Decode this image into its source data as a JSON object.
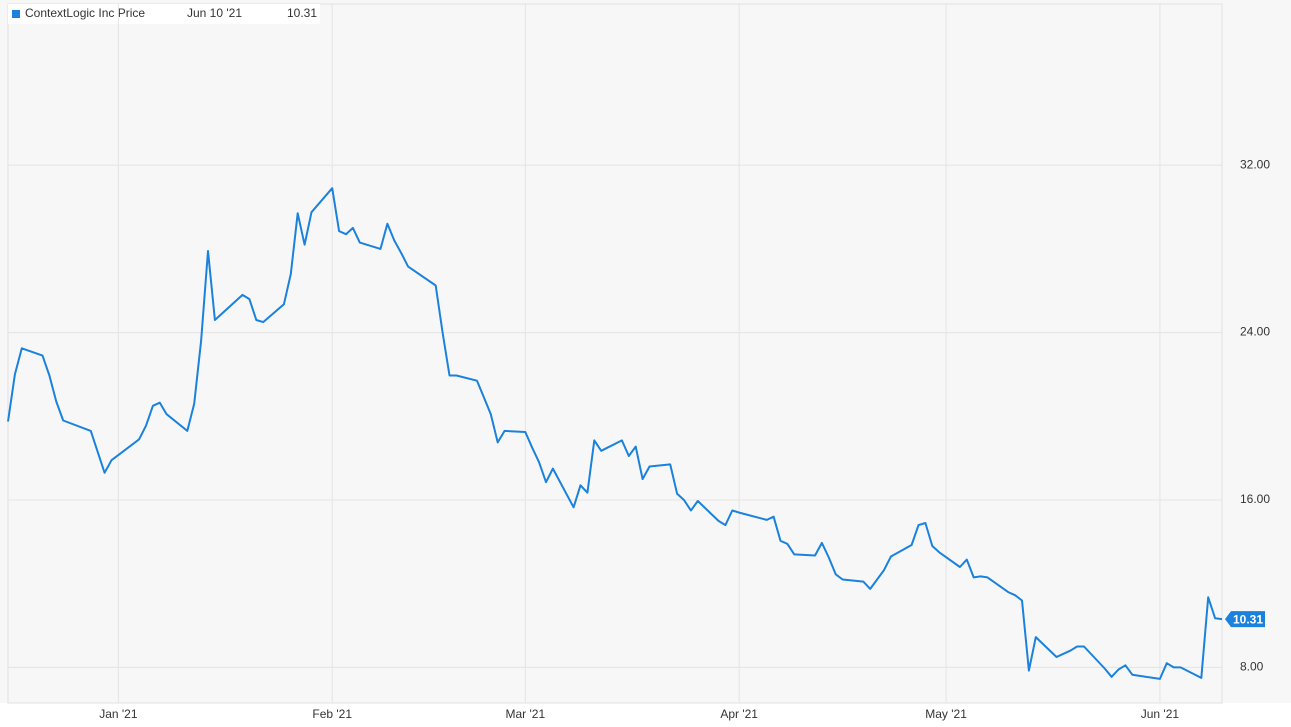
{
  "chart_data": {
    "type": "line",
    "legend_date": "Jun 10 '21",
    "series": [
      {
        "name": "ContextLogic Inc Price",
        "color": "#1a82dc",
        "x": [
          "2020-12-16",
          "2020-12-17",
          "2020-12-18",
          "2020-12-21",
          "2020-12-22",
          "2020-12-23",
          "2020-12-24",
          "2020-12-28",
          "2020-12-29",
          "2020-12-30",
          "2020-12-31",
          "2021-01-04",
          "2021-01-05",
          "2021-01-06",
          "2021-01-07",
          "2021-01-08",
          "2021-01-11",
          "2021-01-12",
          "2021-01-13",
          "2021-01-14",
          "2021-01-15",
          "2021-01-19",
          "2021-01-20",
          "2021-01-21",
          "2021-01-22",
          "2021-01-25",
          "2021-01-26",
          "2021-01-27",
          "2021-01-28",
          "2021-01-29",
          "2021-02-01",
          "2021-02-02",
          "2021-02-03",
          "2021-02-04",
          "2021-02-05",
          "2021-02-08",
          "2021-02-09",
          "2021-02-10",
          "2021-02-11",
          "2021-02-12",
          "2021-02-16",
          "2021-02-17",
          "2021-02-18",
          "2021-02-19",
          "2021-02-22",
          "2021-02-23",
          "2021-02-24",
          "2021-02-25",
          "2021-02-26",
          "2021-03-01",
          "2021-03-02",
          "2021-03-03",
          "2021-03-04",
          "2021-03-05",
          "2021-03-08",
          "2021-03-09",
          "2021-03-10",
          "2021-03-11",
          "2021-03-12",
          "2021-03-15",
          "2021-03-16",
          "2021-03-17",
          "2021-03-18",
          "2021-03-19",
          "2021-03-22",
          "2021-03-23",
          "2021-03-24",
          "2021-03-25",
          "2021-03-26",
          "2021-03-29",
          "2021-03-30",
          "2021-03-31",
          "2021-04-01",
          "2021-04-05",
          "2021-04-06",
          "2021-04-07",
          "2021-04-08",
          "2021-04-09",
          "2021-04-12",
          "2021-04-13",
          "2021-04-14",
          "2021-04-15",
          "2021-04-16",
          "2021-04-19",
          "2021-04-20",
          "2021-04-21",
          "2021-04-22",
          "2021-04-23",
          "2021-04-26",
          "2021-04-27",
          "2021-04-28",
          "2021-04-29",
          "2021-04-30",
          "2021-05-03",
          "2021-05-04",
          "2021-05-05",
          "2021-05-06",
          "2021-05-07",
          "2021-05-10",
          "2021-05-11",
          "2021-05-12",
          "2021-05-13",
          "2021-05-14",
          "2021-05-17",
          "2021-05-18",
          "2021-05-19",
          "2021-05-20",
          "2021-05-21",
          "2021-05-24",
          "2021-05-25",
          "2021-05-26",
          "2021-05-27",
          "2021-05-28",
          "2021-06-01",
          "2021-06-02",
          "2021-06-03",
          "2021-06-04",
          "2021-06-07",
          "2021-06-08",
          "2021-06-09",
          "2021-06-10"
        ],
        "values": [
          19.75,
          22.0,
          23.25,
          22.9,
          21.95,
          20.7,
          19.8,
          19.3,
          18.3,
          17.3,
          17.9,
          18.9,
          19.55,
          20.5,
          20.65,
          20.1,
          19.3,
          20.6,
          23.6,
          27.9,
          24.6,
          25.8,
          25.6,
          24.6,
          24.5,
          25.35,
          26.8,
          29.7,
          28.2,
          29.75,
          30.9,
          28.85,
          28.7,
          29.0,
          28.3,
          28.0,
          29.2,
          28.4,
          27.8,
          27.15,
          26.25,
          24.0,
          21.95,
          21.95,
          21.7,
          20.9,
          20.1,
          18.75,
          19.3,
          19.25,
          18.5,
          17.8,
          16.85,
          17.5,
          15.65,
          16.7,
          16.35,
          18.85,
          18.35,
          18.85,
          18.1,
          18.55,
          17.0,
          17.6,
          17.7,
          16.3,
          16.0,
          15.5,
          15.95,
          15.0,
          14.8,
          15.5,
          15.4,
          15.05,
          15.2,
          14.05,
          13.9,
          13.4,
          13.35,
          13.95,
          13.25,
          12.45,
          12.2,
          12.1,
          11.75,
          12.2,
          12.65,
          13.3,
          13.85,
          14.8,
          14.9,
          13.8,
          13.5,
          12.8,
          13.15,
          12.3,
          12.35,
          12.3,
          11.6,
          11.45,
          11.2,
          7.85,
          9.45,
          8.5,
          8.65,
          8.8,
          9.0,
          9.0,
          7.95,
          7.55,
          7.9,
          8.1,
          7.65,
          7.45,
          8.2,
          8.0,
          8.0,
          7.5,
          11.35,
          10.35,
          10.31
        ]
      }
    ],
    "xlim": [
      "2020-12-16",
      "2021-06-10"
    ],
    "xticks": [
      {
        "value": "2021-01-01",
        "label": "Jan '21"
      },
      {
        "value": "2021-02-01",
        "label": "Feb '21"
      },
      {
        "value": "2021-03-01",
        "label": "Mar '21"
      },
      {
        "value": "2021-04-01",
        "label": "Apr '21"
      },
      {
        "value": "2021-05-01",
        "label": "May '21"
      },
      {
        "value": "2021-06-01",
        "label": "Jun '21"
      }
    ],
    "ylim": [
      6.3,
      39.7
    ],
    "yticks": [
      {
        "value": 8,
        "label": "8.00"
      },
      {
        "value": 16,
        "label": "16.00"
      },
      {
        "value": 24,
        "label": "24.00"
      },
      {
        "value": 32,
        "label": "32.00"
      }
    ],
    "grid": true
  }
}
